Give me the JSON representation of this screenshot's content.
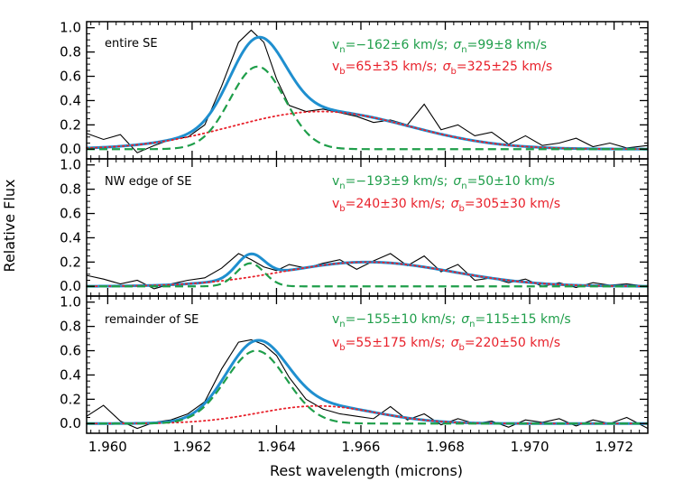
{
  "chart_data": {
    "type": "line",
    "xlabel": "Rest wavelength (microns)",
    "ylabel": "Relative Flux",
    "xlim": [
      1.9595,
      1.9728
    ],
    "x_ticks": [
      "1.960",
      "1.962",
      "1.964",
      "1.966",
      "1.968",
      "1.970",
      "1.972"
    ],
    "x_tick_values": [
      1.96,
      1.962,
      1.964,
      1.966,
      1.968,
      1.97,
      1.972
    ],
    "ylim": [
      -0.08,
      1.05
    ],
    "y_ticks": [
      "0.0",
      "0.2",
      "0.4",
      "0.6",
      "0.8",
      "1.0"
    ],
    "y_tick_values": [
      0.0,
      0.2,
      0.4,
      0.6,
      0.8,
      1.0
    ],
    "colors": {
      "data": "#000000",
      "total_fit": "#1f8fcf",
      "narrow": "#1f9e4a",
      "broad": "#e8202a",
      "narrow_text": "#1f9e4a",
      "broad_text": "#e8202a"
    },
    "panels": [
      {
        "label": "entire SE",
        "narrow_text": {
          "v_sym": "v",
          "v_sub": "n",
          "v_val": "=−162±6 km/s;",
          "s_sym": "σ",
          "s_sub": "n",
          "s_val": "=99±8 km/s"
        },
        "broad_text": {
          "v_sym": "v",
          "v_sub": "b",
          "v_val": "=65±35 km/s;",
          "s_sym": "σ",
          "s_sub": "b",
          "s_val": "=325±25 km/s"
        },
        "narrow": {
          "amp": 0.68,
          "center": 1.96355,
          "sigma": 0.00065
        },
        "broad": {
          "amp": 0.31,
          "center": 1.96505,
          "sigma": 0.0021
        },
        "data_x": [
          1.9595,
          1.9599,
          1.9603,
          1.9607,
          1.9611,
          1.9615,
          1.9619,
          1.9623,
          1.9627,
          1.9631,
          1.9634,
          1.9637,
          1.964,
          1.9643,
          1.9647,
          1.9651,
          1.9655,
          1.9659,
          1.9663,
          1.9667,
          1.9671,
          1.9675,
          1.9679,
          1.9683,
          1.9687,
          1.9691,
          1.9695,
          1.9699,
          1.9703,
          1.9707,
          1.9711,
          1.9715,
          1.9719,
          1.9723,
          1.9728
        ],
        "data_y": [
          0.13,
          0.08,
          0.12,
          -0.03,
          0.03,
          0.08,
          0.1,
          0.2,
          0.52,
          0.88,
          0.98,
          0.88,
          0.58,
          0.36,
          0.31,
          0.33,
          0.3,
          0.27,
          0.22,
          0.24,
          0.2,
          0.37,
          0.16,
          0.2,
          0.11,
          0.14,
          0.04,
          0.11,
          0.03,
          0.05,
          0.09,
          0.02,
          0.05,
          0.01,
          0.03
        ]
      },
      {
        "label": "NW edge of SE",
        "narrow_text": {
          "v_sym": "v",
          "v_sub": "n",
          "v_val": "=−193±9 km/s;",
          "s_sym": "σ",
          "s_sub": "n",
          "s_val": "=50±10 km/s"
        },
        "broad_text": {
          "v_sym": "v",
          "v_sub": "b",
          "v_val": "=240±30 km/s;",
          "s_sym": "σ",
          "s_sub": "b",
          "s_val": "=305±30 km/s"
        },
        "narrow": {
          "amp": 0.19,
          "center": 1.96338,
          "sigma": 0.00033
        },
        "broad": {
          "amp": 0.2,
          "center": 1.96615,
          "sigma": 0.002
        },
        "data_x": [
          1.9595,
          1.9599,
          1.9603,
          1.9607,
          1.9611,
          1.9615,
          1.9619,
          1.9623,
          1.9627,
          1.9631,
          1.9634,
          1.9637,
          1.964,
          1.9643,
          1.9647,
          1.9651,
          1.9655,
          1.9659,
          1.9663,
          1.9667,
          1.9671,
          1.9675,
          1.9679,
          1.9683,
          1.9687,
          1.9691,
          1.9695,
          1.9699,
          1.9703,
          1.9707,
          1.9711,
          1.9715,
          1.9719,
          1.9723,
          1.9728
        ],
        "data_y": [
          0.09,
          0.06,
          0.02,
          0.05,
          -0.02,
          0.02,
          0.05,
          0.07,
          0.15,
          0.27,
          0.22,
          0.16,
          0.13,
          0.18,
          0.15,
          0.19,
          0.22,
          0.14,
          0.21,
          0.27,
          0.17,
          0.25,
          0.12,
          0.18,
          0.05,
          0.07,
          0.03,
          0.06,
          0.0,
          0.03,
          -0.01,
          0.03,
          0.01,
          0.02,
          0.0
        ]
      },
      {
        "label": "remainder of SE",
        "narrow_text": {
          "v_sym": "v",
          "v_sub": "n",
          "v_val": "=−155±10 km/s;",
          "s_sym": "σ",
          "s_sub": "n",
          "s_val": "=115±15 km/s"
        },
        "broad_text": {
          "v_sym": "v",
          "v_sub": "b",
          "v_val": "=55±175 km/s;",
          "s_sym": "σ",
          "s_sub": "b",
          "s_val": "=220±50 km/s"
        },
        "narrow": {
          "amp": 0.6,
          "center": 1.96352,
          "sigma": 0.00072
        },
        "broad": {
          "amp": 0.145,
          "center": 1.96498,
          "sigma": 0.0014
        },
        "data_x": [
          1.9595,
          1.9599,
          1.9603,
          1.9607,
          1.9611,
          1.9615,
          1.9619,
          1.9623,
          1.9627,
          1.9631,
          1.9634,
          1.9637,
          1.964,
          1.9643,
          1.9647,
          1.9651,
          1.9655,
          1.9659,
          1.9663,
          1.9667,
          1.9671,
          1.9675,
          1.9679,
          1.9683,
          1.9687,
          1.9691,
          1.9695,
          1.9699,
          1.9703,
          1.9707,
          1.9711,
          1.9715,
          1.9719,
          1.9723,
          1.9728
        ],
        "data_y": [
          0.06,
          0.15,
          0.02,
          -0.04,
          0.01,
          0.03,
          0.08,
          0.18,
          0.45,
          0.67,
          0.69,
          0.65,
          0.56,
          0.38,
          0.2,
          0.12,
          0.08,
          0.06,
          0.04,
          0.14,
          0.03,
          0.08,
          -0.01,
          0.04,
          0.0,
          0.02,
          -0.03,
          0.03,
          0.01,
          0.04,
          -0.02,
          0.03,
          0.0,
          0.05,
          -0.04
        ]
      }
    ]
  }
}
